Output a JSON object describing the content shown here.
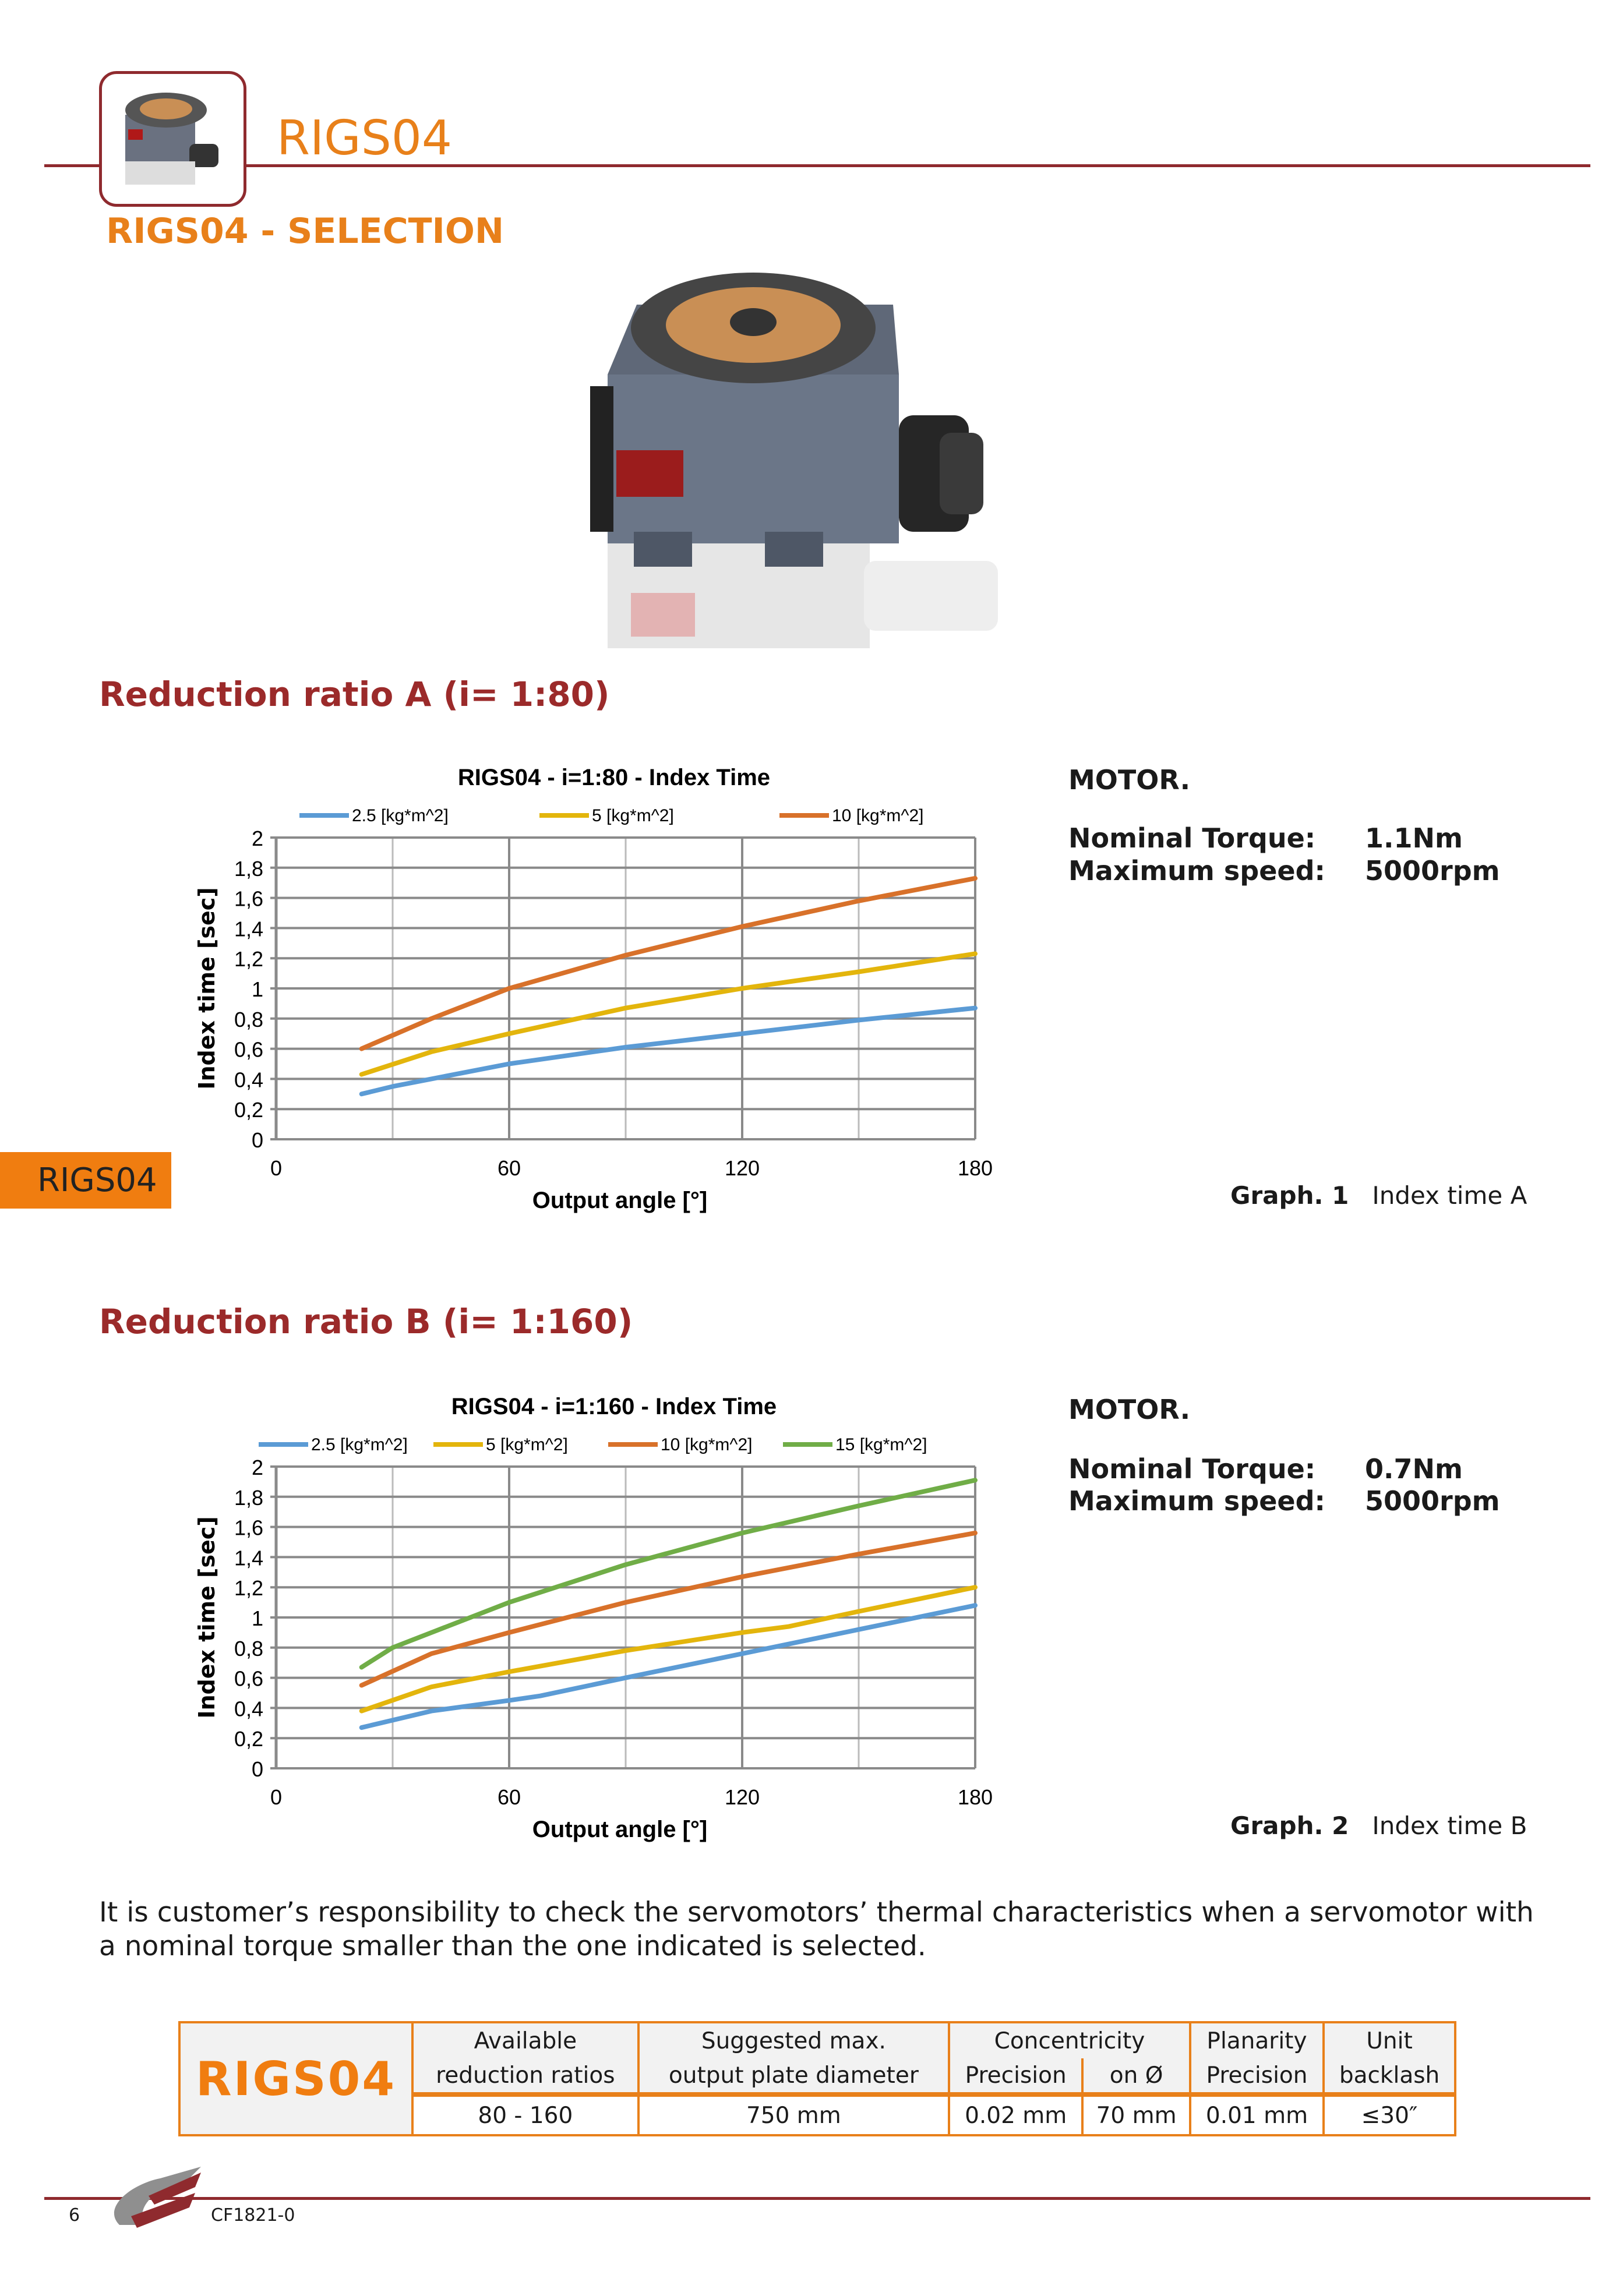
{
  "header": {
    "title": "RIGS04",
    "subtitle": "RIGS04 - SELECTION"
  },
  "side_tab": "RIGS04",
  "section_a": {
    "heading": "Reduction ratio A (i= 1:80)",
    "motor": {
      "title": "MOTOR.",
      "torque_label": "Nominal Torque:",
      "torque_value": "1.1Nm",
      "speed_label": "Maximum speed:",
      "speed_value": "5000rpm"
    },
    "graph_label": "Graph. 1",
    "graph_caption": "Index time A"
  },
  "section_b": {
    "heading": "Reduction ratio B (i= 1:160)",
    "motor": {
      "title": "MOTOR.",
      "torque_label": "Nominal Torque:",
      "torque_value": "0.7Nm",
      "speed_label": "Maximum speed:",
      "speed_value": "5000rpm"
    },
    "graph_label": "Graph. 2",
    "graph_caption": "Index time B"
  },
  "chart_data": [
    {
      "type": "line",
      "title": "RIGS04  - i=1:80  - Index  Time",
      "xlabel": "Output angle [°]",
      "ylabel": "Index time [sec]",
      "xlim": [
        0,
        180
      ],
      "ylim": [
        0,
        2
      ],
      "xticks": [
        "0",
        "60",
        "120",
        "180"
      ],
      "yticks": [
        "0",
        "0,2",
        "0,4",
        "0,6",
        "0,8",
        "1",
        "1,2",
        "1,4",
        "1,6",
        "1,8",
        "2"
      ],
      "grid": true,
      "legend": "top",
      "series": [
        {
          "name": "2.5 [kg*m^2]",
          "color": "#5b9bd5",
          "x": [
            22,
            30,
            60,
            90,
            120,
            150,
            180
          ],
          "y": [
            0.3,
            0.35,
            0.5,
            0.61,
            0.7,
            0.79,
            0.87
          ]
        },
        {
          "name": "5 [kg*m^2]",
          "color": "#e3b50c",
          "x": [
            22,
            40,
            60,
            90,
            120,
            150,
            180
          ],
          "y": [
            0.43,
            0.58,
            0.7,
            0.87,
            1.0,
            1.11,
            1.23
          ]
        },
        {
          "name": "10 [kg*m^2]",
          "color": "#d8712a",
          "x": [
            22,
            40,
            60,
            90,
            120,
            150,
            180
          ],
          "y": [
            0.6,
            0.8,
            1.0,
            1.22,
            1.41,
            1.58,
            1.73
          ]
        }
      ]
    },
    {
      "type": "line",
      "title": "RIGS04  - i=1:160  - Index Time",
      "xlabel": "Output angle [°]",
      "ylabel": "Index time [sec]",
      "xlim": [
        0,
        180
      ],
      "ylim": [
        0,
        2
      ],
      "xticks": [
        "0",
        "60",
        "120",
        "180"
      ],
      "yticks": [
        "0",
        "0,2",
        "0,4",
        "0,6",
        "0,8",
        "1",
        "1,2",
        "1,4",
        "1,6",
        "1,8",
        "2"
      ],
      "grid": true,
      "legend": "top",
      "series": [
        {
          "name": "2.5 [kg*m^2]",
          "color": "#5b9bd5",
          "x": [
            22,
            40,
            60,
            68,
            90,
            120,
            150,
            180
          ],
          "y": [
            0.27,
            0.38,
            0.45,
            0.48,
            0.6,
            0.76,
            0.92,
            1.08
          ]
        },
        {
          "name": "5 [kg*m^2]",
          "color": "#e3b50c",
          "x": [
            22,
            40,
            60,
            90,
            120,
            132,
            150,
            180
          ],
          "y": [
            0.38,
            0.54,
            0.64,
            0.78,
            0.9,
            0.94,
            1.04,
            1.2
          ]
        },
        {
          "name": "10 [kg*m^2]",
          "color": "#d8712a",
          "x": [
            22,
            40,
            60,
            90,
            120,
            150,
            180
          ],
          "y": [
            0.55,
            0.76,
            0.9,
            1.1,
            1.27,
            1.42,
            1.56
          ]
        },
        {
          "name": "15 [kg*m^2]",
          "color": "#70ad47",
          "x": [
            22,
            30,
            60,
            90,
            120,
            150,
            180
          ],
          "y": [
            0.67,
            0.8,
            1.1,
            1.35,
            1.56,
            1.74,
            1.91
          ]
        }
      ]
    }
  ],
  "note": "It is customer’s responsibility to check the servomotors’ thermal characteristics when a servomotor with a nominal torque smaller than the one indicated is selected.",
  "table": {
    "brand": "RIGS04",
    "h1": [
      "Available",
      "Suggested max.",
      "Concentricity",
      "Planarity",
      "Unit"
    ],
    "h2": [
      "reduction ratios",
      "output plate diameter",
      "Precision",
      "on Ø",
      "Precision",
      "backlash"
    ],
    "values": [
      "80 - 160",
      "750 mm",
      "0.02 mm",
      "70 mm",
      "0.01 mm",
      "≤30″"
    ]
  },
  "footer": {
    "page": "6",
    "code": "CF1821-0"
  },
  "colors": {
    "accent": "#e8801a",
    "brand_red": "#8f2a2e"
  }
}
